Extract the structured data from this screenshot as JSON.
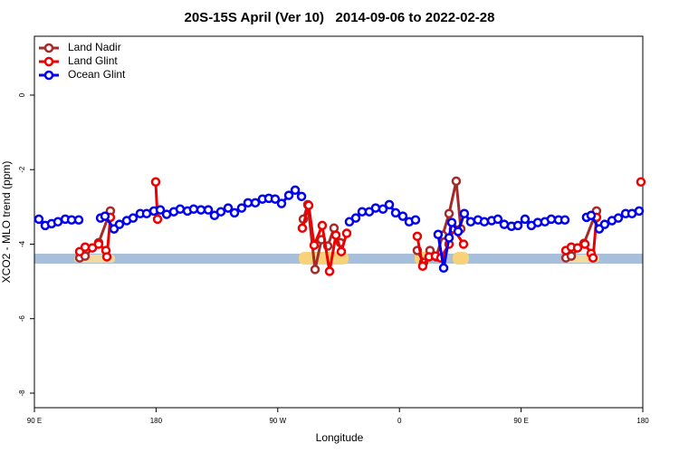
{
  "chart_data": {
    "type": "line",
    "title": "20S-15S April (Ver 10)   2014-09-06 to 2022-02-28",
    "x_label": "Longitude",
    "y_label": "XCO2 - MLO trend (ppm)",
    "xlim": [
      90,
      540
    ],
    "xticks": [
      {
        "value": 90,
        "label": "90 E"
      },
      {
        "value": 180,
        "label": "180"
      },
      {
        "value": 270,
        "label": "90 W"
      },
      {
        "value": 360,
        "label": "0"
      },
      {
        "value": 450,
        "label": "90 E"
      },
      {
        "value": 540,
        "label": "180"
      }
    ],
    "ylim": [
      -8.39,
      1.58
    ],
    "yticks": [
      0,
      -2,
      -4,
      -6,
      -8
    ],
    "legend": "top-left",
    "series": [
      {
        "name": "Land Nadir",
        "color": "#a52a2a",
        "x": [
          123.5,
          127.5,
          137.5,
          146.2,
          null,
          288.9,
          292.2,
          297.6,
          302.3,
          307,
          311.6,
          316.3,
          null,
          373.2,
          377.9,
          382.6,
          387.3,
          392,
          396.7,
          402,
          405.4,
          null,
          483.1,
          487.1,
          496.5,
          505.8
        ],
        "values": [
          -4.37,
          -4.32,
          -3.96,
          -3.11,
          null,
          -3.33,
          -2.94,
          -4.68,
          -3.88,
          -4.05,
          -3.57,
          -3.96,
          null,
          -4.17,
          -4.49,
          -4.17,
          -4.34,
          -3.76,
          -3.18,
          -2.31,
          -3.59,
          null,
          -4.37,
          -4.32,
          -3.98,
          -3.11
        ]
      },
      {
        "name": "Land Glint",
        "color": "#ee0000",
        "x": [
          123.5,
          127.5,
          132.9,
          137.5,
          142.9,
          143.6,
          146.2,
          null,
          179.7,
          181.1,
          null,
          288.2,
          292.9,
          296.9,
          302.9,
          308.3,
          313,
          317,
          321,
          null,
          373.2,
          377.2,
          381.9,
          386.6,
          390.6,
          396.7,
          400,
          407.4,
          null,
          483.1,
          487.1,
          491.8,
          497.2,
          501.8,
          503.2,
          505.8,
          null,
          538.6
        ],
        "values": [
          -4.2,
          -4.08,
          -4.1,
          -4.0,
          -4.17,
          -4.34,
          -3.28,
          null,
          -2.33,
          -3.33,
          null,
          -3.57,
          -2.96,
          -4.03,
          -3.5,
          -4.73,
          -3.76,
          -4.2,
          -3.71,
          null,
          -3.79,
          -4.59,
          -4.34,
          -4.32,
          -4.37,
          -4.0,
          -3.59,
          -4.0,
          null,
          -4.17,
          -4.08,
          -4.1,
          -4.0,
          -4.25,
          -4.37,
          -3.28,
          null,
          -2.33
        ]
      },
      {
        "name": "Ocean Glint",
        "color": "#0000ee",
        "x": [
          93.3,
          98,
          102.7,
          107.4,
          112.8,
          117.5,
          122.8,
          null,
          138.9,
          142.2,
          148.9,
          152.9,
          158.3,
          163,
          168.3,
          173,
          178.4,
          183.1,
          187.8,
          193.1,
          197.8,
          203.2,
          207.8,
          213.2,
          218.6,
          223.2,
          227.9,
          233.3,
          238,
          243.3,
          248,
          253.4,
          258.7,
          263.4,
          268.1,
          272.8,
          278.2,
          282.9,
          287.6,
          null,
          323,
          327.7,
          332.4,
          337.7,
          342.4,
          347.8,
          352.5,
          357.2,
          362.5,
          367.2,
          371.9,
          null,
          388.6,
          392.7,
          396.7,
          398.7,
          403.4,
          408,
          412.7,
          418.1,
          422.8,
          428.2,
          432.8,
          437.5,
          442.9,
          447.6,
          452.9,
          457.6,
          462.3,
          467.6,
          472.3,
          477.7,
          482.4,
          null,
          498.4,
          501.8,
          507.8,
          511.8,
          517.2,
          521.9,
          527.3,
          532,
          537.3
        ],
        "values": [
          -3.33,
          -3.5,
          -3.45,
          -3.4,
          -3.33,
          -3.35,
          -3.35,
          null,
          -3.3,
          -3.25,
          -3.59,
          -3.47,
          -3.37,
          -3.3,
          -3.18,
          -3.18,
          -3.11,
          -3.08,
          -3.2,
          -3.13,
          -3.06,
          -3.11,
          -3.06,
          -3.08,
          -3.08,
          -3.23,
          -3.13,
          -3.03,
          -3.16,
          -3.03,
          -2.89,
          -2.89,
          -2.79,
          -2.77,
          -2.79,
          -2.91,
          -2.69,
          -2.55,
          -2.72,
          null,
          -3.4,
          -3.3,
          -3.13,
          -3.13,
          -3.03,
          -3.06,
          -2.94,
          -3.16,
          -3.25,
          -3.4,
          -3.35,
          null,
          -3.74,
          -4.64,
          -3.83,
          -3.42,
          -3.66,
          -3.18,
          -3.4,
          -3.35,
          -3.4,
          -3.37,
          -3.33,
          -3.47,
          -3.52,
          -3.5,
          -3.33,
          -3.5,
          -3.42,
          -3.4,
          -3.33,
          -3.35,
          -3.35,
          null,
          -3.28,
          -3.23,
          -3.59,
          -3.47,
          -3.37,
          -3.3,
          -3.18,
          -3.18,
          -3.11
        ]
      }
    ]
  }
}
